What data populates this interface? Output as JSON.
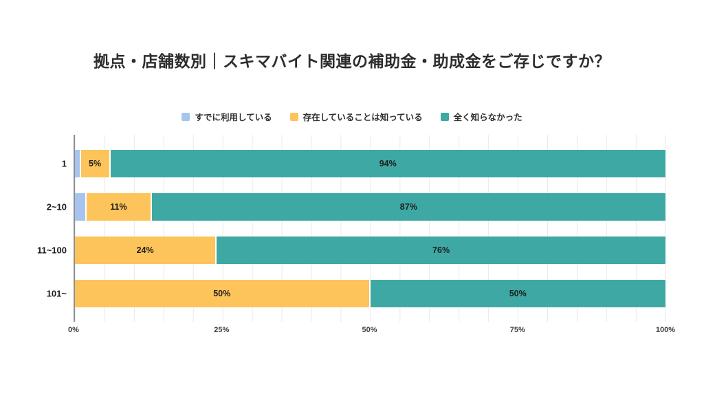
{
  "title": "拠点・店舗数別｜スキマバイト関連の補助金・助成金をご存じですか？",
  "colors": {
    "already_using": "#A5C5F0",
    "know_exists": "#FCC45A",
    "did_not_know": "#3EA8A5",
    "axis_line": "#8f8f8f",
    "gridline": "#e9e9e9"
  },
  "chart_data": {
    "type": "bar",
    "orientation": "horizontal",
    "stacked": true,
    "title": "拠点・店舗数別｜スキマバイト関連の補助金・助成金をご存じですか？",
    "categories": [
      "1",
      "2~10",
      "11~100",
      "101~"
    ],
    "series": [
      {
        "name": "すでに利用している",
        "color": "#A5C5F0",
        "values": [
          1,
          2,
          0,
          0
        ],
        "labels": [
          "",
          "",
          "",
          ""
        ]
      },
      {
        "name": "存在していることは知っている",
        "color": "#FCC45A",
        "values": [
          5,
          11,
          24,
          50
        ],
        "labels": [
          "5%",
          "11%",
          "24%",
          "50%"
        ]
      },
      {
        "name": "全く知らなかった",
        "color": "#3EA8A5",
        "values": [
          94,
          87,
          76,
          50
        ],
        "labels": [
          "94%",
          "87%",
          "76%",
          "50%"
        ]
      }
    ],
    "xlabel": "",
    "ylabel": "",
    "x_ticks": [
      "0%",
      "25%",
      "50%",
      "75%",
      "100%"
    ],
    "xlim": [
      0,
      100
    ],
    "grid": "minor vertical gridlines every 5%",
    "legend_position": "top-center"
  }
}
